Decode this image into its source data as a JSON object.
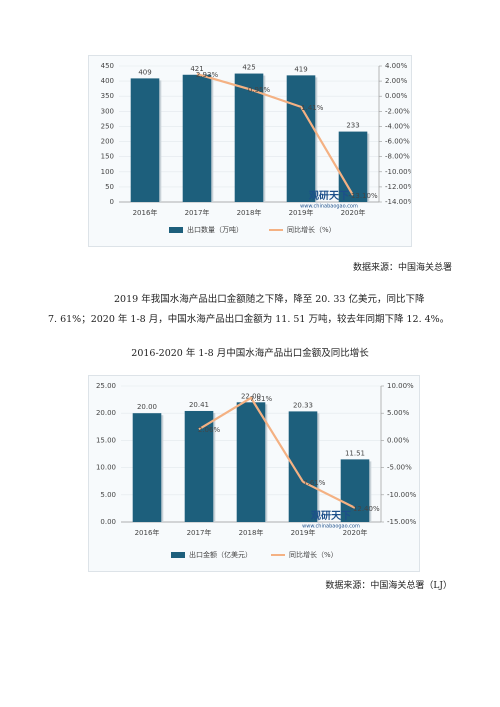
{
  "chart_data": [
    {
      "type": "bar",
      "categories": [
        "2016年",
        "2017年",
        "2018年",
        "2019年",
        "2020年"
      ],
      "series": [
        {
          "name": "出口数量（万吨）",
          "type": "bar",
          "axis": "y",
          "color": "#1d5f7c",
          "values": [
            409,
            421,
            425,
            419,
            233
          ]
        },
        {
          "name": "同比增长（%）",
          "type": "line",
          "axis": "y2",
          "color": "#f4b183",
          "values": [
            null,
            2.93,
            0.95,
            -1.41,
            -13.1
          ],
          "value_labels": [
            null,
            "2.93%",
            "0.95%",
            "-1.41%",
            "-13.10%"
          ]
        }
      ],
      "ylim": [
        0,
        450
      ],
      "yticks": [
        0,
        50,
        100,
        150,
        200,
        250,
        300,
        350,
        400,
        450
      ],
      "y2lim": [
        -14,
        4
      ],
      "y2ticks": [
        {
          "value": -14,
          "label": "-14.00%"
        },
        {
          "value": -12,
          "label": "-12.00%"
        },
        {
          "value": -10,
          "label": "-10.00%"
        },
        {
          "value": -8,
          "label": "-8.00%"
        },
        {
          "value": -6,
          "label": "-6.00%"
        },
        {
          "value": -4,
          "label": "-4.00%"
        },
        {
          "value": -2,
          "label": "-2.00%"
        },
        {
          "value": 0,
          "label": "0.00%"
        },
        {
          "value": 2,
          "label": "2.00%"
        },
        {
          "value": 4,
          "label": "4.00%"
        }
      ],
      "watermark": [
        "观研天下",
        "www.chinabaogao.com"
      ],
      "grid": true,
      "legend": "bottom"
    },
    {
      "type": "bar",
      "categories": [
        "2016年",
        "2017年",
        "2018年",
        "2019年",
        "2020年"
      ],
      "series": [
        {
          "name": "出口金额（亿美元）",
          "type": "bar",
          "axis": "y",
          "color": "#1d5f7c",
          "values": [
            20.0,
            20.41,
            22.0,
            20.33,
            11.51
          ],
          "value_labels": [
            "20.00",
            "20.41",
            "22.00",
            "20.33",
            "11.51"
          ]
        },
        {
          "name": "同比增长（%）",
          "type": "line",
          "axis": "y2",
          "color": "#f4b183",
          "values": [
            null,
            2.06,
            7.81,
            -7.61,
            -12.4
          ],
          "value_labels": [
            null,
            "2.06%",
            "7.81%",
            "-7.61%",
            "-12.40%"
          ]
        }
      ],
      "ylim": [
        0,
        25
      ],
      "yticks": [
        {
          "value": 0,
          "label": "0.00"
        },
        {
          "value": 5,
          "label": "5.00"
        },
        {
          "value": 10,
          "label": "10.00"
        },
        {
          "value": 15,
          "label": "15.00"
        },
        {
          "value": 20,
          "label": "20.00"
        },
        {
          "value": 25,
          "label": "25.00"
        }
      ],
      "y2lim": [
        -15,
        10
      ],
      "y2ticks": [
        {
          "value": -15,
          "label": "-15.00%"
        },
        {
          "value": -10,
          "label": "-10.00%"
        },
        {
          "value": -5,
          "label": "-5.00%"
        },
        {
          "value": 0,
          "label": "0.00%"
        },
        {
          "value": 5,
          "label": "5.00%"
        },
        {
          "value": 10,
          "label": "10.00%"
        }
      ],
      "watermark": [
        "观研天下",
        "www.chinabaogao.com"
      ],
      "grid": true,
      "legend": "bottom"
    }
  ],
  "document": {
    "source_1": "数据来源：中国海关总署",
    "paragraph": [
      "2019 年我国水海产品出口金额随之下降，降至 20. 33 亿美元，同比下降",
      "7. 61%；2020 年 1-8 月，中国水海产品出口金额为 11. 51 万吨，较去年同期下降 12. 4%。"
    ],
    "caption": "2016-2020 年 1-8 月中国水海产品出口金额及同比增长",
    "source_2": "数据来源：中国海关总署（LJ）"
  }
}
